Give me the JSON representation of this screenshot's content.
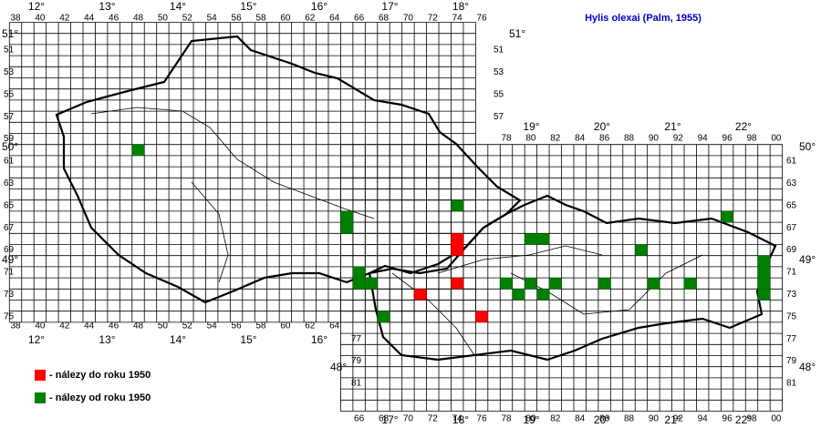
{
  "title": "Hylis olexai (Palm, 1955)",
  "legend": [
    {
      "label": "- nálezy do roku 1950",
      "color": "#ff0000"
    },
    {
      "label": "- nálezy od roku 1950",
      "color": "#008000"
    }
  ],
  "records_before_1950": [
    {
      "col": 74,
      "row": 68
    },
    {
      "col": 74,
      "row": 69
    },
    {
      "col": 71,
      "row": 73
    },
    {
      "col": 74,
      "row": 72
    },
    {
      "col": 76,
      "row": 75
    }
  ],
  "records_after_1950": [
    {
      "col": 48,
      "row": 60
    },
    {
      "col": 65,
      "row": 66
    },
    {
      "col": 65,
      "row": 67
    },
    {
      "col": 74,
      "row": 65
    },
    {
      "col": 66,
      "row": 71
    },
    {
      "col": 66,
      "row": 72
    },
    {
      "col": 67,
      "row": 72
    },
    {
      "col": 68,
      "row": 75
    },
    {
      "col": 80,
      "row": 68
    },
    {
      "col": 81,
      "row": 68
    },
    {
      "col": 89,
      "row": 69
    },
    {
      "col": 96,
      "row": 66
    },
    {
      "col": 99,
      "row": 70
    },
    {
      "col": 99,
      "row": 71
    },
    {
      "col": 99,
      "row": 72
    },
    {
      "col": 99,
      "row": 73
    },
    {
      "col": 78,
      "row": 72
    },
    {
      "col": 79,
      "row": 73
    },
    {
      "col": 80,
      "row": 72
    },
    {
      "col": 81,
      "row": 73
    },
    {
      "col": 82,
      "row": 72
    },
    {
      "col": 86,
      "row": 72
    },
    {
      "col": 90,
      "row": 72
    },
    {
      "col": 93,
      "row": 72
    }
  ],
  "column_labels": {
    "czech_top": [
      "38",
      "40",
      "42",
      "44",
      "46",
      "48",
      "50",
      "52",
      "54",
      "56",
      "58",
      "60",
      "62",
      "64",
      "66",
      "68",
      "70",
      "72",
      "74",
      "76"
    ],
    "czech_bottom": [
      "38",
      "40",
      "42",
      "44",
      "46",
      "48",
      "50",
      "52",
      "54",
      "56",
      "58",
      "60",
      "62",
      "64"
    ],
    "slovak_top": [
      "78",
      "80",
      "82",
      "84",
      "86",
      "88",
      "90",
      "92",
      "94",
      "96",
      "98",
      "00"
    ],
    "slovak_bottom": [
      "66",
      "68",
      "70",
      "72",
      "74",
      "76",
      "78",
      "80",
      "82",
      "84",
      "86",
      "88",
      "90",
      "92",
      "94",
      "96",
      "98",
      "00"
    ]
  },
  "row_labels": {
    "czech_left": [
      "51",
      "53",
      "55",
      "57",
      "59",
      "61",
      "63",
      "65",
      "67",
      "69",
      "71",
      "73",
      "75"
    ],
    "czech_right": [
      "51",
      "53",
      "55",
      "57"
    ],
    "slovak_left": [
      "77",
      "79",
      "81"
    ],
    "slovak_right": [
      "61",
      "63",
      "65",
      "67",
      "69",
      "71",
      "73",
      "75",
      "77",
      "79",
      "81"
    ]
  },
  "longitude_labels": {
    "czech_top": [
      "12°",
      "13°",
      "14°",
      "15°",
      "16°",
      "17°",
      "18°"
    ],
    "czech_bottom": [
      "12°",
      "13°",
      "14°",
      "15°",
      "16°"
    ],
    "slovak_top": [
      "19°",
      "20°",
      "21°",
      "22°"
    ],
    "slovak_bottom": [
      "17°",
      "18°",
      "19°",
      "20°",
      "21°",
      "22°"
    ]
  },
  "latitude_labels": {
    "left": [
      "51°",
      "50°",
      "49°"
    ],
    "right": [
      "51°",
      "50°",
      "49°"
    ],
    "bottom_left": [
      "48°"
    ],
    "bottom_right": [
      "48°"
    ]
  }
}
